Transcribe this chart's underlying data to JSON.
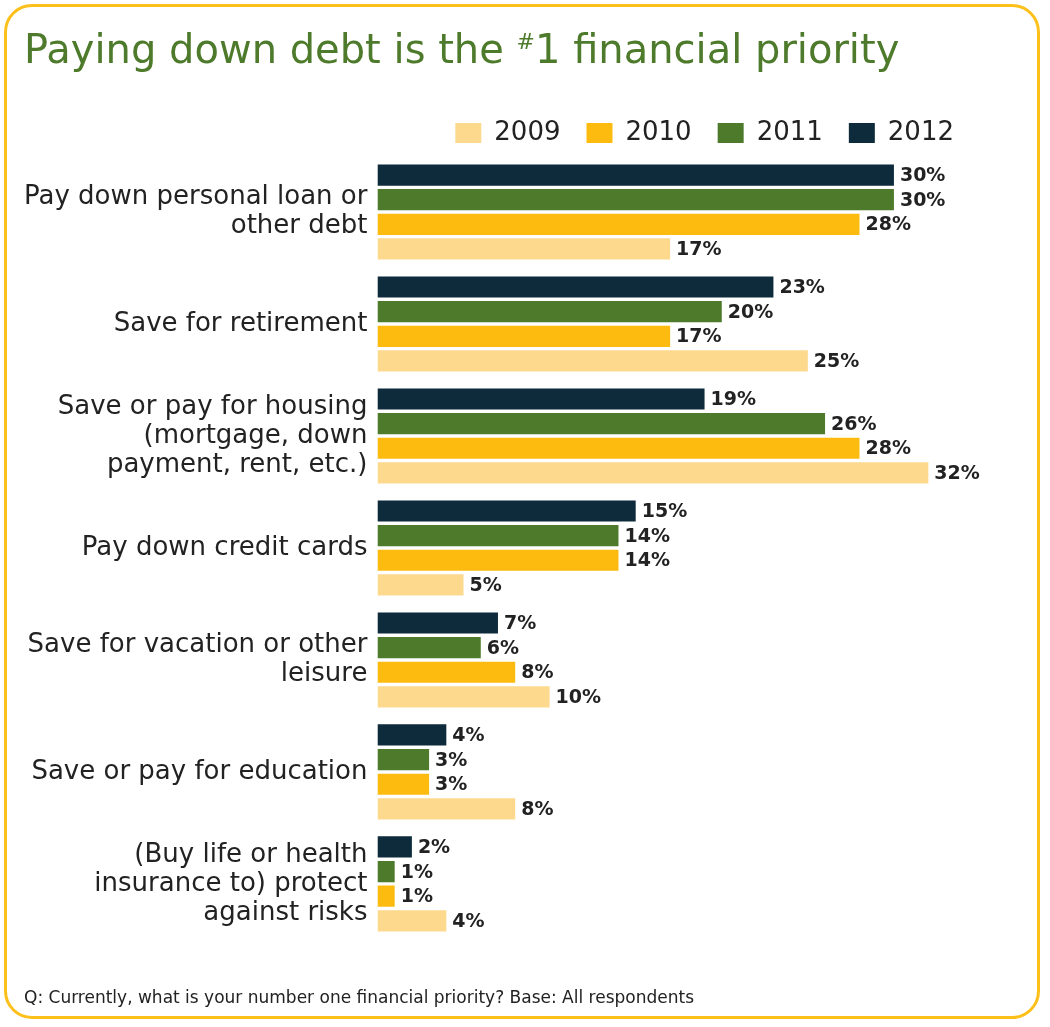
{
  "chart_data": {
    "type": "bar",
    "orientation": "horizontal",
    "title": "Paying down debt is the $^{#}$1 financial priority",
    "categories": [
      "Pay down personal loan or other debt",
      "Save for retirement",
      "Save or pay for housing (mortgage, down payment, rent, etc.)",
      "Pay down credit cards",
      "Save for vacation or other leisure",
      "Save or pay for education",
      "(Buy life or health insurance to) protect against risks"
    ],
    "series": [
      {
        "name": "2009",
        "color": "#fdd98e",
        "values": [
          17,
          25,
          32,
          5,
          10,
          8,
          4
        ],
        "value_labels": [
          "17%",
          "25%",
          "32%",
          "5%",
          "10%",
          "8%",
          "4%"
        ]
      },
      {
        "name": "2010",
        "color": "#fdbb10",
        "values": [
          28,
          17,
          28,
          14,
          8,
          3,
          1
        ],
        "value_labels": [
          "28%",
          "17%",
          "28%",
          "14%",
          "8%",
          "3%",
          "1%"
        ]
      },
      {
        "name": "2011",
        "color": "#4e7a2b",
        "values": [
          30,
          20,
          26,
          14,
          6,
          3,
          1
        ],
        "value_labels": [
          "30%",
          "20%",
          "26%",
          "14%",
          "6%",
          "3%",
          "1%"
        ]
      },
      {
        "name": "2012",
        "color": "#0d2b3a",
        "values": [
          30,
          23,
          19,
          15,
          7,
          4,
          2
        ],
        "value_labels": [
          "30%",
          "23%",
          "19%",
          "15%",
          "7%",
          "4%",
          "2%"
        ]
      }
    ],
    "legend": "top right",
    "grid": false,
    "tick_labels": "y",
    "annotations": [
      "Q: Currently, what is your number one financial priority? Base: All respondents"
    ]
  }
}
